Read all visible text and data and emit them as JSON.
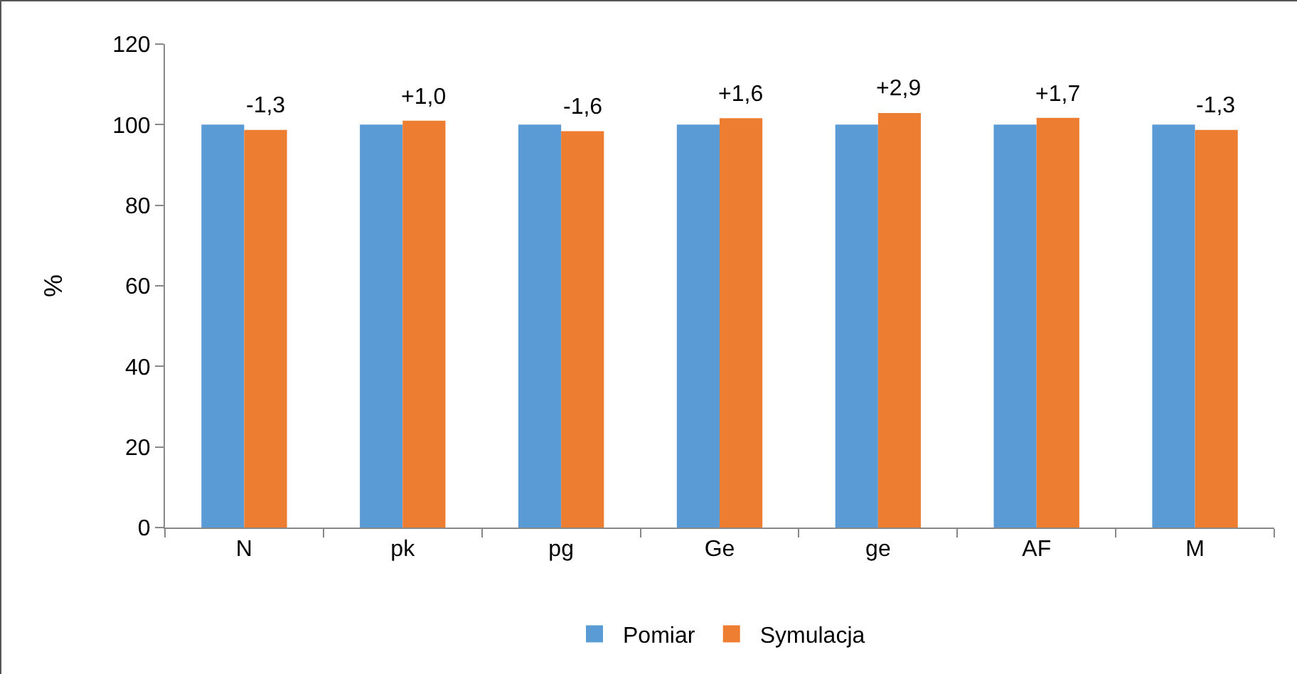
{
  "chart_data": {
    "type": "bar",
    "ylabel": "%",
    "categories": [
      "N",
      "pk",
      "pg",
      "Ge",
      "ge",
      "AF",
      "M"
    ],
    "series": [
      {
        "name": "Pomiar",
        "color": "#5b9bd5",
        "values": [
          100,
          100,
          100,
          100,
          100,
          100,
          100
        ]
      },
      {
        "name": "Symulacja",
        "color": "#ed7d31",
        "values": [
          98.7,
          101.0,
          98.4,
          101.6,
          102.9,
          101.7,
          98.7
        ]
      }
    ],
    "annotations": [
      {
        "text": "-1,3",
        "x": "N",
        "y": 98.7
      },
      {
        "text": "+1,0",
        "x": "pk",
        "y": 101.0
      },
      {
        "text": "-1,6",
        "x": "pg",
        "y": 98.4
      },
      {
        "text": "+1,6",
        "x": "Ge",
        "y": 101.6
      },
      {
        "text": "+2,9",
        "x": "ge",
        "y": 102.9
      },
      {
        "text": "+1,7",
        "x": "AF",
        "y": 101.7
      },
      {
        "text": "-1,3",
        "x": "M",
        "y": 98.7
      }
    ],
    "ylim": [
      0,
      120
    ],
    "yticks": [
      0,
      20,
      40,
      60,
      80,
      100,
      120
    ],
    "grid": false,
    "legend": "bottom"
  }
}
